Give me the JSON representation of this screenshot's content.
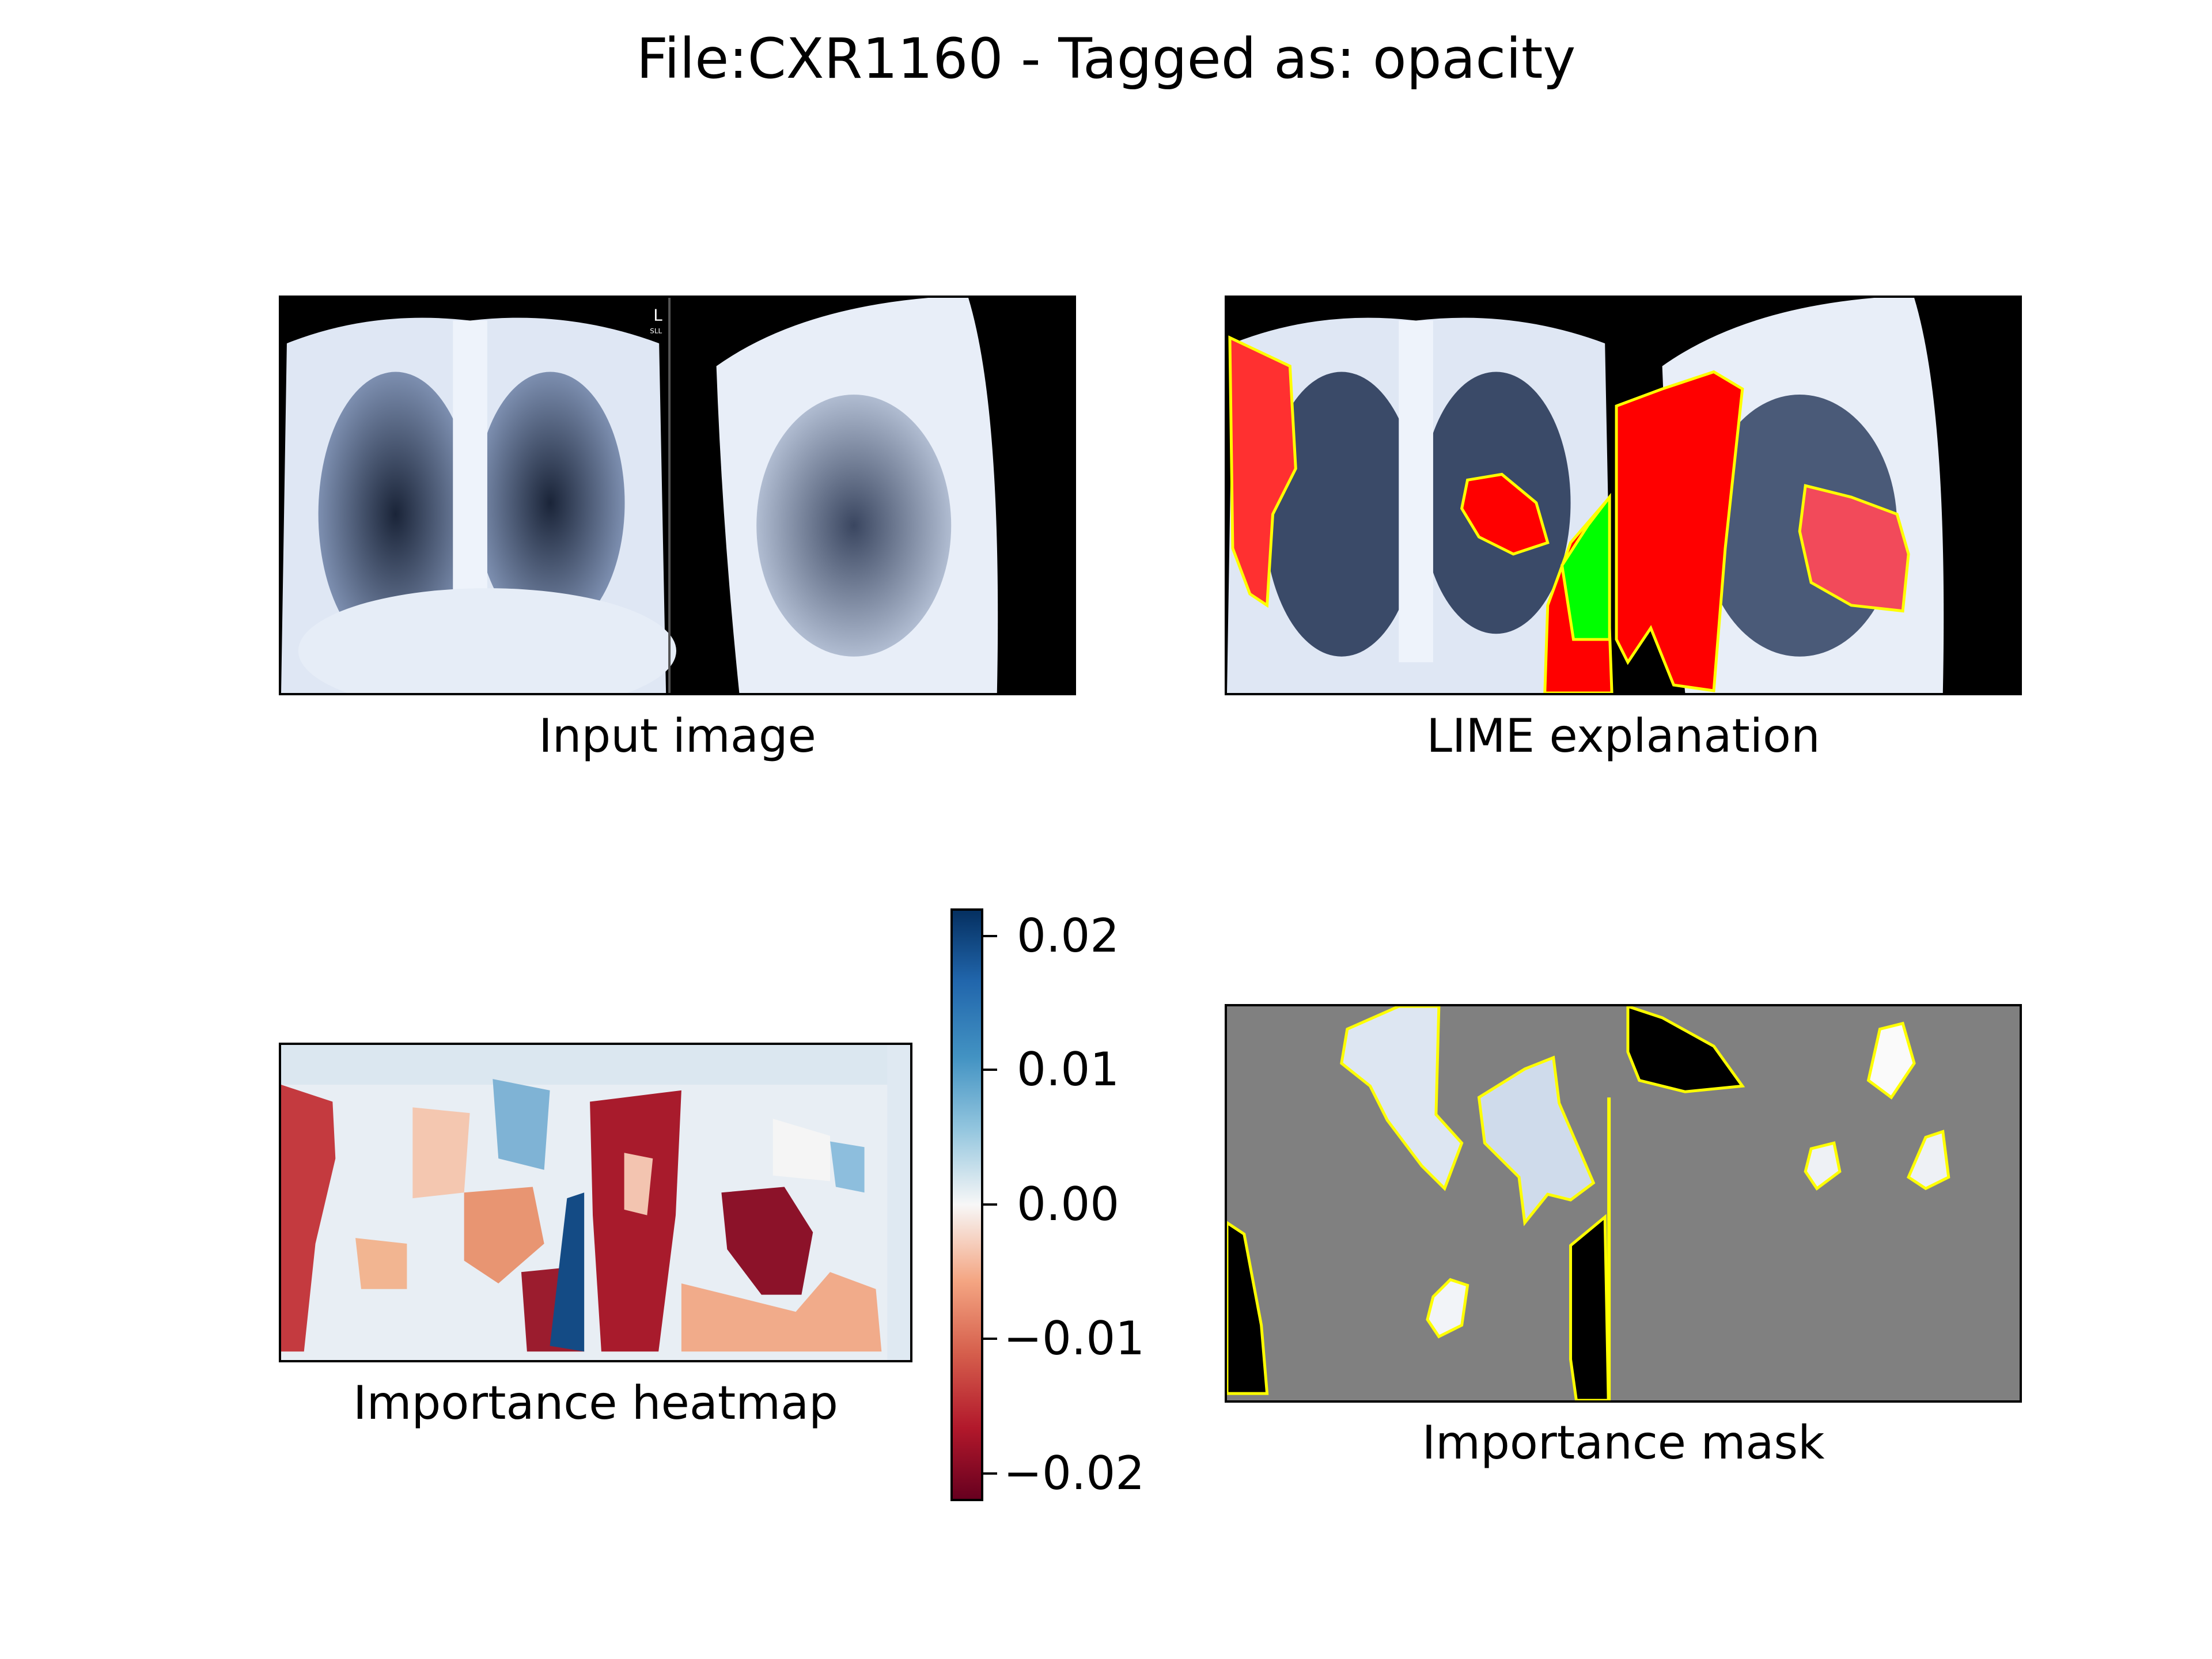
{
  "figure": {
    "title": "File:CXR1160 - Tagged as: opacity"
  },
  "panels": {
    "input_caption": "Input image",
    "lime_caption": "LIME explanation",
    "heatmap_caption": "Importance heatmap",
    "mask_caption": "Importance mask",
    "xray_marker": "L",
    "xray_marker_sub": "SLL"
  },
  "colorbar": {
    "colormap": "RdBu",
    "ticks": [
      "0.02",
      "0.01",
      "0.00",
      "−0.01",
      "−0.02"
    ],
    "range": [
      -0.022,
      0.022
    ]
  },
  "colors": {
    "lime_positive": "#ff0000",
    "lime_negative": "#00ff00",
    "boundary": "#ffff00",
    "mask_background": "#808080"
  }
}
